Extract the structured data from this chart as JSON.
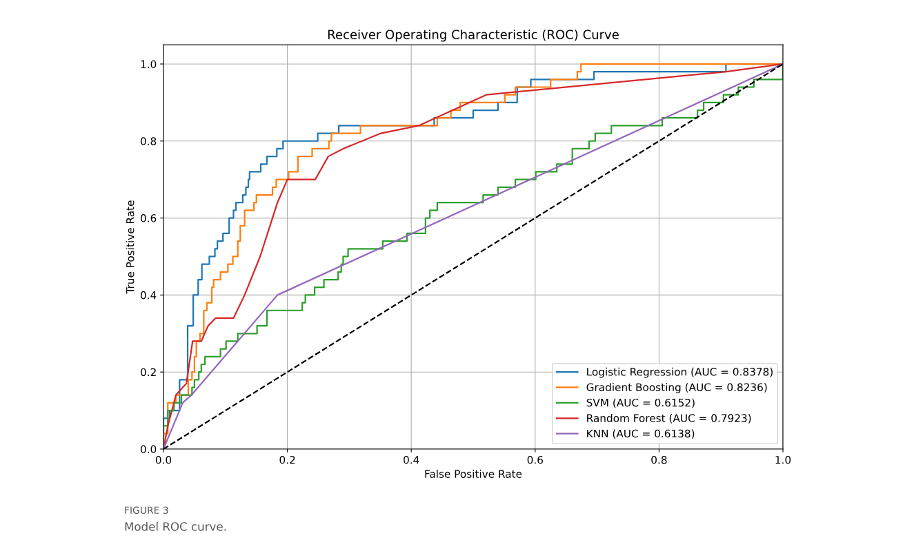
{
  "chart_data": {
    "type": "line",
    "title": "Receiver Operating Characteristic (ROC) Curve",
    "xlabel": "False Positive Rate",
    "ylabel": "True Positive Rate",
    "xlim": [
      0,
      1.0
    ],
    "ylim": [
      0,
      1.05
    ],
    "xticks": [
      {
        "value": 0,
        "label": "0.0"
      },
      {
        "value": 0.2,
        "label": "0.2"
      },
      {
        "value": 0.4,
        "label": "0.4"
      },
      {
        "value": 0.6,
        "label": "0.6"
      },
      {
        "value": 0.8,
        "label": "0.8"
      },
      {
        "value": 1.0,
        "label": "1.0"
      }
    ],
    "yticks": [
      {
        "value": 0,
        "label": "0.0"
      },
      {
        "value": 0.2,
        "label": "0.2"
      },
      {
        "value": 0.4,
        "label": "0.4"
      },
      {
        "value": 0.6,
        "label": "0.6"
      },
      {
        "value": 0.8,
        "label": "0.8"
      },
      {
        "value": 1.0,
        "label": "1.0"
      }
    ],
    "grid": true,
    "legend": "lower right",
    "line_style": "solid",
    "marker": "none",
    "annotations": [
      "FIGURE 3",
      "Model ROC curve."
    ],
    "series": [
      {
        "name": "Logistic Regression (AUC = 0.8378)",
        "color": "#1f77b4",
        "type": "step",
        "x": [
          0,
          0,
          0.01,
          0.026,
          0.039,
          0.048,
          0.056,
          0.062,
          0.074,
          0.083,
          0.087,
          0.096,
          0.106,
          0.113,
          0.117,
          0.128,
          0.133,
          0.137,
          0.139,
          0.157,
          0.167,
          0.183,
          0.193,
          0.249,
          0.283,
          0.437,
          0.5,
          0.54,
          0.571,
          0.593,
          0.695,
          0.908,
          1.0
        ],
        "values": [
          0,
          0.08,
          0.1,
          0.18,
          0.32,
          0.4,
          0.44,
          0.48,
          0.5,
          0.52,
          0.54,
          0.56,
          0.6,
          0.62,
          0.64,
          0.66,
          0.68,
          0.7,
          0.72,
          0.74,
          0.76,
          0.78,
          0.8,
          0.82,
          0.84,
          0.86,
          0.88,
          0.9,
          0.94,
          0.96,
          0.98,
          1.0,
          1.0
        ]
      },
      {
        "name": "Gradient Boosting (AUC = 0.8236)",
        "color": "#ff7f0e",
        "type": "step",
        "x": [
          0,
          0,
          0.007,
          0.02,
          0.04,
          0.046,
          0.05,
          0.053,
          0.059,
          0.065,
          0.07,
          0.078,
          0.081,
          0.092,
          0.104,
          0.112,
          0.12,
          0.124,
          0.131,
          0.146,
          0.15,
          0.176,
          0.182,
          0.202,
          0.217,
          0.24,
          0.267,
          0.271,
          0.318,
          0.442,
          0.464,
          0.479,
          0.551,
          0.568,
          0.625,
          0.668,
          0.674,
          1.0
        ],
        "values": [
          0,
          0.04,
          0.12,
          0.14,
          0.18,
          0.2,
          0.24,
          0.28,
          0.3,
          0.36,
          0.38,
          0.42,
          0.44,
          0.46,
          0.48,
          0.5,
          0.54,
          0.58,
          0.62,
          0.64,
          0.66,
          0.68,
          0.7,
          0.72,
          0.76,
          0.78,
          0.8,
          0.82,
          0.84,
          0.86,
          0.88,
          0.9,
          0.92,
          0.94,
          0.96,
          0.98,
          1.0,
          1.0
        ]
      },
      {
        "name": "SVM (AUC = 0.6152)",
        "color": "#2ca02c",
        "type": "step",
        "x": [
          0,
          0,
          0.007,
          0.017,
          0.029,
          0.046,
          0.05,
          0.057,
          0.061,
          0.067,
          0.092,
          0.101,
          0.12,
          0.151,
          0.167,
          0.224,
          0.229,
          0.244,
          0.259,
          0.282,
          0.287,
          0.29,
          0.298,
          0.354,
          0.393,
          0.423,
          0.43,
          0.442,
          0.516,
          0.54,
          0.568,
          0.601,
          0.635,
          0.66,
          0.687,
          0.697,
          0.723,
          0.805,
          0.862,
          0.872,
          0.904,
          0.928,
          0.953,
          1.0,
          1.0
        ],
        "values": [
          0,
          0.06,
          0.1,
          0.12,
          0.14,
          0.16,
          0.18,
          0.2,
          0.22,
          0.24,
          0.26,
          0.28,
          0.3,
          0.32,
          0.36,
          0.38,
          0.4,
          0.42,
          0.44,
          0.46,
          0.48,
          0.5,
          0.52,
          0.54,
          0.56,
          0.6,
          0.62,
          0.64,
          0.66,
          0.68,
          0.7,
          0.72,
          0.74,
          0.78,
          0.8,
          0.82,
          0.84,
          0.86,
          0.88,
          0.9,
          0.92,
          0.94,
          0.96,
          0.96,
          1.0
        ]
      },
      {
        "name": "Random Forest (AUC = 0.7923)",
        "color": "#d62728",
        "x": [
          0,
          0.007,
          0.02,
          0.031,
          0.037,
          0.047,
          0.061,
          0.072,
          0.084,
          0.113,
          0.131,
          0.156,
          0.184,
          0.2,
          0.245,
          0.266,
          0.29,
          0.351,
          0.412,
          0.521,
          0.908,
          1.0
        ],
        "values": [
          0,
          0.06,
          0.14,
          0.16,
          0.17,
          0.28,
          0.28,
          0.32,
          0.34,
          0.34,
          0.4,
          0.5,
          0.64,
          0.7,
          0.7,
          0.76,
          0.78,
          0.82,
          0.84,
          0.92,
          0.98,
          1.0
        ]
      },
      {
        "name": "KNN (AUC = 0.6138)",
        "color": "#9467bd",
        "x": [
          0,
          0.031,
          0.045,
          0.184,
          1.0
        ],
        "values": [
          0,
          0.12,
          0.14,
          0.4,
          1.0
        ]
      },
      {
        "color": "#000000",
        "line_style": "dashed",
        "x": [
          0,
          1.0
        ],
        "values": [
          0,
          1.0
        ]
      }
    ]
  }
}
